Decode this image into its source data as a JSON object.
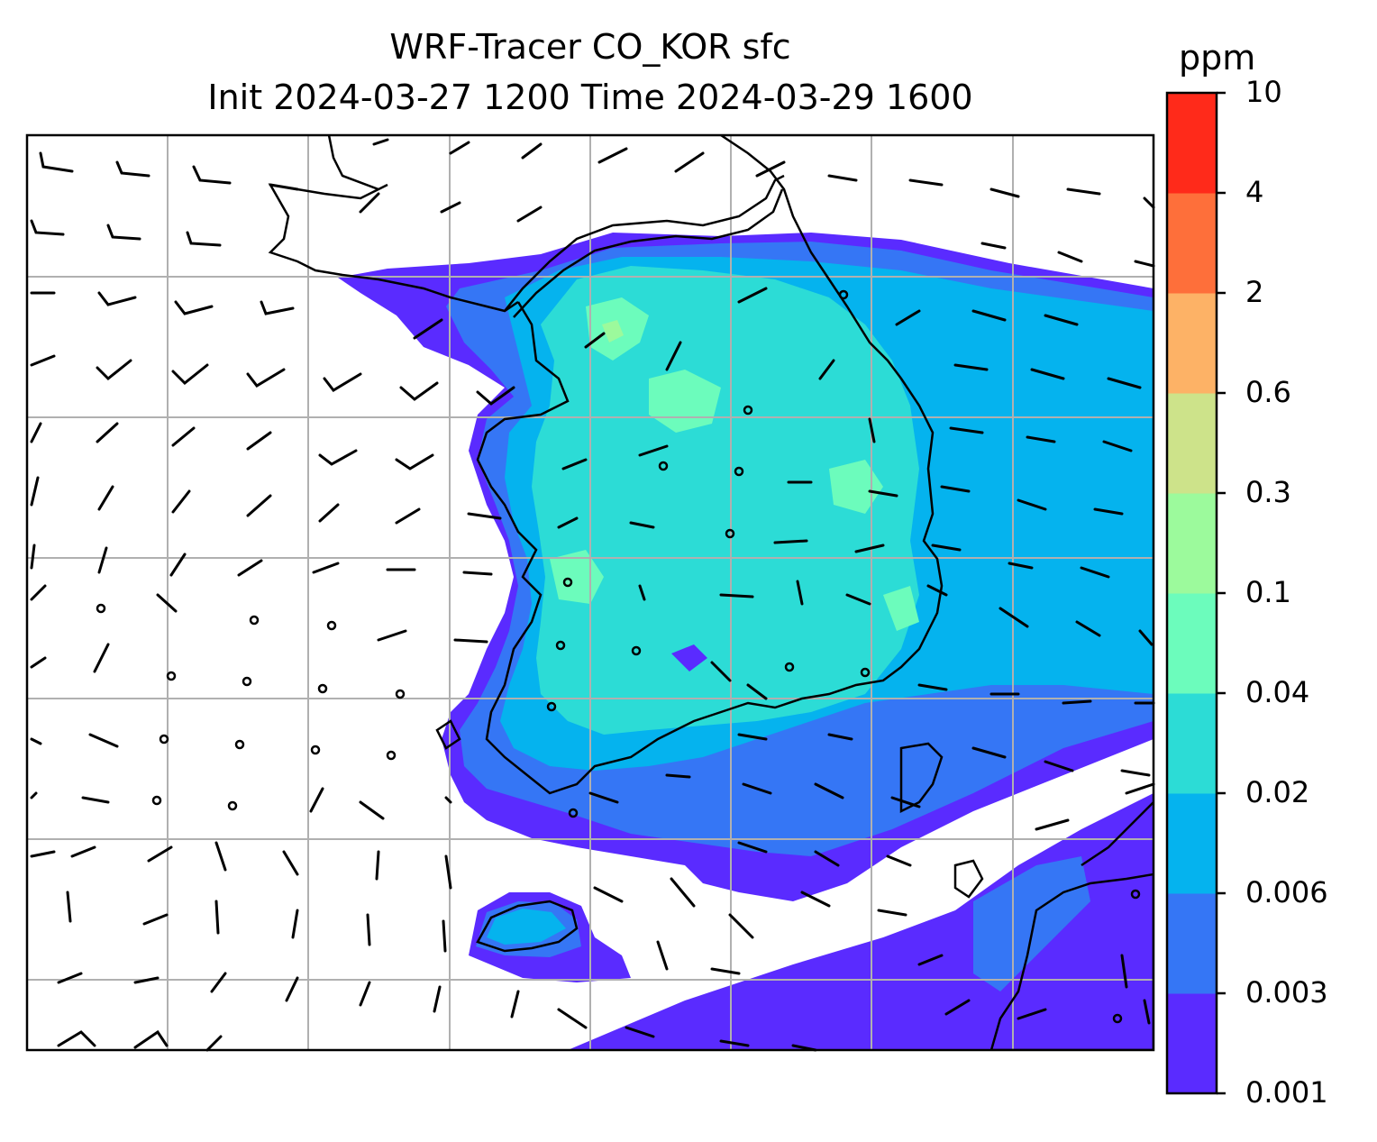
{
  "title": {
    "line1": "WRF-Tracer CO_KOR sfc",
    "line2": "Init 2024-03-27 1200 Time 2024-03-29 1600"
  },
  "colorbar": {
    "unit": "ppm",
    "levels": [
      "0.001",
      "0.003",
      "0.006",
      "0.02",
      "0.04",
      "0.1",
      "0.3",
      "0.6",
      "2",
      "4",
      "10"
    ],
    "colors": [
      "#5a2bff",
      "#3576f5",
      "#05b3ee",
      "#2cdcd6",
      "#6cfcbc",
      "#9cfa9c",
      "#cde38a",
      "#fdb266",
      "#fe6f3a",
      "#ff2a1a"
    ]
  },
  "map": {
    "field": "CO_KOR surface concentration",
    "gridlines": true,
    "features": [
      "coastlines",
      "wind-barbs",
      "calm-circles",
      "filled-contours"
    ]
  }
}
